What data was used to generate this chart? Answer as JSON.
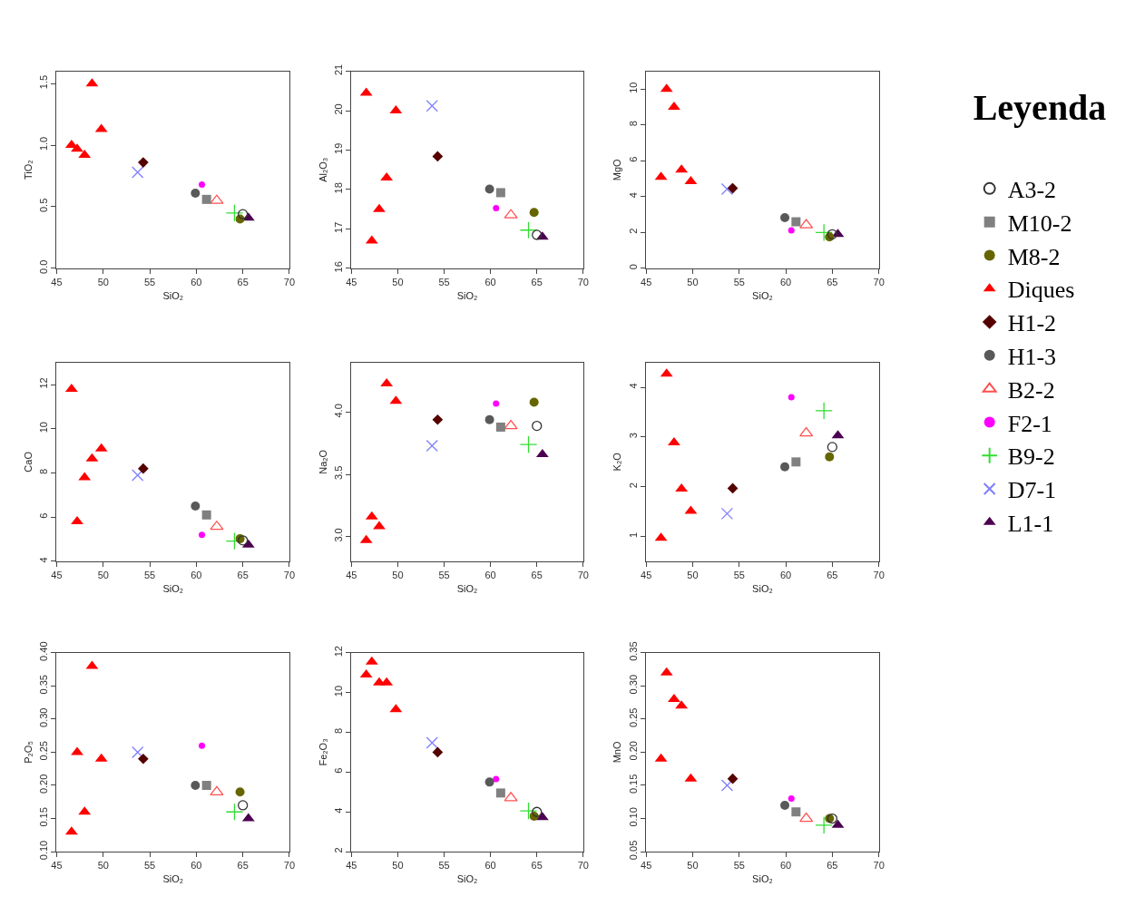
{
  "chart_data": [
    {
      "type": "scatter",
      "xlabel": "SiO₂",
      "ylabel": "TiO₂",
      "xlim": [
        45,
        70
      ],
      "xticks": [
        45,
        50,
        55,
        60,
        65,
        70
      ],
      "ylim": [
        0,
        1.6
      ],
      "yticks": [
        {
          "value": 0,
          "label": "0.0"
        },
        {
          "value": 0.5,
          "label": "0.5"
        },
        {
          "value": 1,
          "label": "1.0"
        },
        {
          "value": 1.5,
          "label": "1.5"
        }
      ],
      "legend": "right",
      "legend_title": "Leyenda",
      "series": [
        {
          "name": "A3-2",
          "color": "#333333",
          "marker": "circle-open",
          "x": [
            65.0
          ],
          "values": [
            0.44
          ]
        },
        {
          "name": "M10-2",
          "color": "#808080",
          "marker": "square",
          "x": [
            61.1
          ],
          "values": [
            0.56
          ]
        },
        {
          "name": "M8-2",
          "color": "#666600",
          "marker": "circle",
          "x": [
            64.7
          ],
          "values": [
            0.4
          ]
        },
        {
          "name": "Diques",
          "color": "#ff0000",
          "marker": "triangle",
          "x": [
            46.6,
            47.2,
            48.0,
            48.8,
            49.8
          ],
          "values": [
            1.0,
            0.97,
            0.92,
            1.5,
            1.13
          ]
        },
        {
          "name": "H1-2",
          "color": "#550000",
          "marker": "diamond",
          "x": [
            54.3
          ],
          "values": [
            0.86
          ]
        },
        {
          "name": "H1-3",
          "color": "#595959",
          "marker": "circle",
          "x": [
            59.9
          ],
          "values": [
            0.61
          ]
        },
        {
          "name": "B2-2",
          "color": "#ff5050",
          "marker": "triangle-open",
          "x": [
            62.2
          ],
          "values": [
            0.55
          ]
        },
        {
          "name": "F2-1",
          "color": "#ff00ff",
          "marker": "dot",
          "x": [
            60.6
          ],
          "values": [
            0.68
          ]
        },
        {
          "name": "B9-2",
          "color": "#33dd33",
          "marker": "cross",
          "x": [
            64.1
          ],
          "values": [
            0.45
          ]
        },
        {
          "name": "D7-1",
          "color": "#7f7fff",
          "marker": "x",
          "x": [
            53.7
          ],
          "values": [
            0.78
          ]
        },
        {
          "name": "L1-1",
          "color": "#4b0050",
          "marker": "triangle",
          "x": [
            65.6
          ],
          "values": [
            0.41
          ]
        }
      ]
    },
    {
      "type": "scatter",
      "xlabel": "SiO₂",
      "ylabel": "Al₂O₃",
      "xlim": [
        45,
        70
      ],
      "xticks": [
        45,
        50,
        55,
        60,
        65,
        70
      ],
      "ylim": [
        16,
        21
      ],
      "yticks": [
        16,
        17,
        18,
        19,
        20,
        21
      ],
      "series": [
        {
          "color": "#333333",
          "marker": "circle-open",
          "x": [
            65.0
          ],
          "values": [
            16.85
          ]
        },
        {
          "color": "#808080",
          "marker": "square",
          "x": [
            61.1
          ],
          "values": [
            17.92
          ]
        },
        {
          "color": "#666600",
          "marker": "circle",
          "x": [
            64.7
          ],
          "values": [
            17.42
          ]
        },
        {
          "color": "#ff0000",
          "marker": "triangle",
          "x": [
            46.6,
            47.2,
            48.0,
            48.8,
            49.8
          ],
          "values": [
            20.45,
            16.7,
            17.5,
            18.3,
            20.0
          ]
        },
        {
          "color": "#550000",
          "marker": "diamond",
          "x": [
            54.3
          ],
          "values": [
            18.84
          ]
        },
        {
          "color": "#595959",
          "marker": "circle",
          "x": [
            59.9
          ],
          "values": [
            18.01
          ]
        },
        {
          "color": "#ff5050",
          "marker": "triangle-open",
          "x": [
            62.2
          ],
          "values": [
            17.35
          ]
        },
        {
          "color": "#ff00ff",
          "marker": "dot",
          "x": [
            60.6
          ],
          "values": [
            17.53
          ]
        },
        {
          "color": "#33dd33",
          "marker": "cross",
          "x": [
            64.1
          ],
          "values": [
            16.97
          ]
        },
        {
          "color": "#7f7fff",
          "marker": "x",
          "x": [
            53.7
          ],
          "values": [
            20.12
          ]
        },
        {
          "color": "#4b0050",
          "marker": "triangle",
          "x": [
            65.6
          ],
          "values": [
            16.8
          ]
        }
      ]
    },
    {
      "type": "scatter",
      "xlabel": "SiO₂",
      "ylabel": "MgO",
      "xlim": [
        45,
        70
      ],
      "xticks": [
        45,
        50,
        55,
        60,
        65,
        70
      ],
      "ylim": [
        0,
        11
      ],
      "yticks": [
        0,
        2,
        4,
        6,
        8,
        10
      ],
      "series": [
        {
          "color": "#333333",
          "marker": "circle-open",
          "x": [
            65.0
          ],
          "values": [
            1.9
          ]
        },
        {
          "color": "#808080",
          "marker": "square",
          "x": [
            61.1
          ],
          "values": [
            2.6
          ]
        },
        {
          "color": "#666600",
          "marker": "circle",
          "x": [
            64.7
          ],
          "values": [
            1.75
          ]
        },
        {
          "color": "#ff0000",
          "marker": "triangle",
          "x": [
            46.6,
            47.2,
            48.0,
            48.8,
            49.8
          ],
          "values": [
            5.1,
            10.0,
            9.0,
            5.5,
            4.85
          ]
        },
        {
          "color": "#550000",
          "marker": "diamond",
          "x": [
            54.3
          ],
          "values": [
            4.47
          ]
        },
        {
          "color": "#595959",
          "marker": "circle",
          "x": [
            59.9
          ],
          "values": [
            2.83
          ]
        },
        {
          "color": "#ff5050",
          "marker": "triangle-open",
          "x": [
            62.2
          ],
          "values": [
            2.42
          ]
        },
        {
          "color": "#ff00ff",
          "marker": "dot",
          "x": [
            60.6
          ],
          "values": [
            2.12
          ]
        },
        {
          "color": "#33dd33",
          "marker": "cross",
          "x": [
            64.1
          ],
          "values": [
            2.0
          ]
        },
        {
          "color": "#7f7fff",
          "marker": "x",
          "x": [
            53.7
          ],
          "values": [
            4.42
          ]
        },
        {
          "color": "#4b0050",
          "marker": "triangle",
          "x": [
            65.6
          ],
          "values": [
            1.9
          ]
        }
      ]
    },
    {
      "type": "scatter",
      "xlabel": "SiO₂",
      "ylabel": "CaO",
      "xlim": [
        45,
        70
      ],
      "xticks": [
        45,
        50,
        55,
        60,
        65,
        70
      ],
      "ylim": [
        4,
        13
      ],
      "yticks": [
        4,
        6,
        8,
        10,
        12
      ],
      "series": [
        {
          "color": "#333333",
          "marker": "circle-open",
          "x": [
            65.0
          ],
          "values": [
            4.95
          ]
        },
        {
          "color": "#808080",
          "marker": "square",
          "x": [
            61.1
          ],
          "values": [
            6.1
          ]
        },
        {
          "color": "#666600",
          "marker": "circle",
          "x": [
            64.7
          ],
          "values": [
            5.02
          ]
        },
        {
          "color": "#ff0000",
          "marker": "triangle",
          "x": [
            46.6,
            47.2,
            48.0,
            48.8,
            49.8
          ],
          "values": [
            11.8,
            5.8,
            7.8,
            8.65,
            9.1
          ]
        },
        {
          "color": "#550000",
          "marker": "diamond",
          "x": [
            54.3
          ],
          "values": [
            8.2
          ]
        },
        {
          "color": "#595959",
          "marker": "circle",
          "x": [
            59.9
          ],
          "values": [
            6.5
          ]
        },
        {
          "color": "#ff5050",
          "marker": "triangle-open",
          "x": [
            62.2
          ],
          "values": [
            5.57
          ]
        },
        {
          "color": "#ff00ff",
          "marker": "dot",
          "x": [
            60.6
          ],
          "values": [
            5.2
          ]
        },
        {
          "color": "#33dd33",
          "marker": "cross",
          "x": [
            64.1
          ],
          "values": [
            4.92
          ]
        },
        {
          "color": "#7f7fff",
          "marker": "x",
          "x": [
            53.7
          ],
          "values": [
            7.9
          ]
        },
        {
          "color": "#4b0050",
          "marker": "triangle",
          "x": [
            65.6
          ],
          "values": [
            4.75
          ]
        }
      ]
    },
    {
      "type": "scatter",
      "xlabel": "SiO₂",
      "ylabel": "Na₂O",
      "xlim": [
        45,
        70
      ],
      "xticks": [
        45,
        50,
        55,
        60,
        65,
        70
      ],
      "ylim": [
        2.8,
        4.4
      ],
      "yticks": [
        {
          "value": 3,
          "label": "3.0"
        },
        {
          "value": 3.5,
          "label": "3.5"
        },
        {
          "value": 4,
          "label": "4.0"
        }
      ],
      "series": [
        {
          "color": "#333333",
          "marker": "circle-open",
          "x": [
            65.0
          ],
          "values": [
            3.89
          ]
        },
        {
          "color": "#808080",
          "marker": "square",
          "x": [
            61.1
          ],
          "values": [
            3.88
          ]
        },
        {
          "color": "#666600",
          "marker": "circle",
          "x": [
            64.7
          ],
          "values": [
            4.08
          ]
        },
        {
          "color": "#ff0000",
          "marker": "triangle",
          "x": [
            46.6,
            47.2,
            48.0,
            48.8,
            49.8
          ],
          "values": [
            2.97,
            3.16,
            3.08,
            4.23,
            4.09
          ]
        },
        {
          "color": "#550000",
          "marker": "diamond",
          "x": [
            54.3
          ],
          "values": [
            3.94
          ]
        },
        {
          "color": "#595959",
          "marker": "circle",
          "x": [
            59.9
          ],
          "values": [
            3.94
          ]
        },
        {
          "color": "#ff5050",
          "marker": "triangle-open",
          "x": [
            62.2
          ],
          "values": [
            3.89
          ]
        },
        {
          "color": "#ff00ff",
          "marker": "dot",
          "x": [
            60.6
          ],
          "values": [
            4.07
          ]
        },
        {
          "color": "#33dd33",
          "marker": "cross",
          "x": [
            64.1
          ],
          "values": [
            3.74
          ]
        },
        {
          "color": "#7f7fff",
          "marker": "x",
          "x": [
            53.7
          ],
          "values": [
            3.73
          ]
        },
        {
          "color": "#4b0050",
          "marker": "triangle",
          "x": [
            65.6
          ],
          "values": [
            3.66
          ]
        }
      ]
    },
    {
      "type": "scatter",
      "xlabel": "SiO₂",
      "ylabel": "K₂O",
      "xlim": [
        45,
        70
      ],
      "xticks": [
        45,
        50,
        55,
        60,
        65,
        70
      ],
      "ylim": [
        0.5,
        4.5
      ],
      "yticks": [
        1,
        2,
        3,
        4
      ],
      "series": [
        {
          "color": "#333333",
          "marker": "circle-open",
          "x": [
            65.0
          ],
          "values": [
            2.8
          ]
        },
        {
          "color": "#808080",
          "marker": "square",
          "x": [
            61.1
          ],
          "values": [
            2.5
          ]
        },
        {
          "color": "#666600",
          "marker": "circle",
          "x": [
            64.7
          ],
          "values": [
            2.6
          ]
        },
        {
          "color": "#ff0000",
          "marker": "triangle",
          "x": [
            46.6,
            47.2,
            48.0,
            48.8,
            49.8
          ],
          "values": [
            0.97,
            4.27,
            2.89,
            1.96,
            1.51
          ]
        },
        {
          "color": "#550000",
          "marker": "diamond",
          "x": [
            54.3
          ],
          "values": [
            1.97
          ]
        },
        {
          "color": "#595959",
          "marker": "circle",
          "x": [
            59.9
          ],
          "values": [
            2.4
          ]
        },
        {
          "color": "#ff5050",
          "marker": "triangle-open",
          "x": [
            62.2
          ],
          "values": [
            3.08
          ]
        },
        {
          "color": "#ff00ff",
          "marker": "dot",
          "x": [
            60.6
          ],
          "values": [
            3.8
          ]
        },
        {
          "color": "#33dd33",
          "marker": "cross",
          "x": [
            64.1
          ],
          "values": [
            3.53
          ]
        },
        {
          "color": "#7f7fff",
          "marker": "x",
          "x": [
            53.7
          ],
          "values": [
            1.46
          ]
        },
        {
          "color": "#4b0050",
          "marker": "triangle",
          "x": [
            65.6
          ],
          "values": [
            3.03
          ]
        }
      ]
    },
    {
      "type": "scatter",
      "xlabel": "SiO₂",
      "ylabel": "P₂O₅",
      "xlim": [
        45,
        70
      ],
      "xticks": [
        45,
        50,
        55,
        60,
        65,
        70
      ],
      "ylim": [
        0.1,
        0.4
      ],
      "yticks": [
        {
          "value": 0.1,
          "label": "0.10"
        },
        {
          "value": 0.15,
          "label": "0.15"
        },
        {
          "value": 0.2,
          "label": "0.20"
        },
        {
          "value": 0.25,
          "label": "0.25"
        },
        {
          "value": 0.3,
          "label": "0.30"
        },
        {
          "value": 0.35,
          "label": "0.35"
        },
        {
          "value": 0.4,
          "label": "0.40"
        }
      ],
      "series": [
        {
          "color": "#333333",
          "marker": "circle-open",
          "x": [
            65.0
          ],
          "values": [
            0.17
          ]
        },
        {
          "color": "#808080",
          "marker": "square",
          "x": [
            61.1
          ],
          "values": [
            0.2
          ]
        },
        {
          "color": "#666600",
          "marker": "circle",
          "x": [
            64.7
          ],
          "values": [
            0.19
          ]
        },
        {
          "color": "#ff0000",
          "marker": "triangle",
          "x": [
            46.6,
            47.2,
            48.0,
            48.8,
            49.8
          ],
          "values": [
            0.13,
            0.25,
            0.16,
            0.38,
            0.24
          ]
        },
        {
          "color": "#550000",
          "marker": "diamond",
          "x": [
            54.3
          ],
          "values": [
            0.24
          ]
        },
        {
          "color": "#595959",
          "marker": "circle",
          "x": [
            59.9
          ],
          "values": [
            0.2
          ]
        },
        {
          "color": "#ff5050",
          "marker": "triangle-open",
          "x": [
            62.2
          ],
          "values": [
            0.19
          ]
        },
        {
          "color": "#ff00ff",
          "marker": "dot",
          "x": [
            60.6
          ],
          "values": [
            0.26
          ]
        },
        {
          "color": "#33dd33",
          "marker": "cross",
          "x": [
            64.1
          ],
          "values": [
            0.16
          ]
        },
        {
          "color": "#7f7fff",
          "marker": "x",
          "x": [
            53.7
          ],
          "values": [
            0.25
          ]
        },
        {
          "color": "#4b0050",
          "marker": "triangle",
          "x": [
            65.6
          ],
          "values": [
            0.15
          ]
        }
      ]
    },
    {
      "type": "scatter",
      "xlabel": "SiO₂",
      "ylabel": "Fe₂O₃",
      "xlim": [
        45,
        70
      ],
      "xticks": [
        45,
        50,
        55,
        60,
        65,
        70
      ],
      "ylim": [
        2,
        12
      ],
      "yticks": [
        2,
        4,
        6,
        8,
        10,
        12
      ],
      "series": [
        {
          "color": "#333333",
          "marker": "circle-open",
          "x": [
            65.0
          ],
          "values": [
            4.0
          ]
        },
        {
          "color": "#808080",
          "marker": "square",
          "x": [
            61.1
          ],
          "values": [
            4.95
          ]
        },
        {
          "color": "#666600",
          "marker": "circle",
          "x": [
            64.7
          ],
          "values": [
            3.78
          ]
        },
        {
          "color": "#ff0000",
          "marker": "triangle",
          "x": [
            46.6,
            47.2,
            48.0,
            48.8,
            49.8
          ],
          "values": [
            10.9,
            11.55,
            10.5,
            10.5,
            9.15
          ]
        },
        {
          "color": "#550000",
          "marker": "diamond",
          "x": [
            54.3
          ],
          "values": [
            7.0
          ]
        },
        {
          "color": "#595959",
          "marker": "circle",
          "x": [
            59.9
          ],
          "values": [
            5.5
          ]
        },
        {
          "color": "#ff5050",
          "marker": "triangle-open",
          "x": [
            62.2
          ],
          "values": [
            4.7
          ]
        },
        {
          "color": "#ff00ff",
          "marker": "dot",
          "x": [
            60.6
          ],
          "values": [
            5.65
          ]
        },
        {
          "color": "#33dd33",
          "marker": "cross",
          "x": [
            64.1
          ],
          "values": [
            4.05
          ]
        },
        {
          "color": "#7f7fff",
          "marker": "x",
          "x": [
            53.7
          ],
          "values": [
            7.48
          ]
        },
        {
          "color": "#4b0050",
          "marker": "triangle",
          "x": [
            65.6
          ],
          "values": [
            3.73
          ]
        }
      ]
    },
    {
      "type": "scatter",
      "xlabel": "SiO₂",
      "ylabel": "MnO",
      "xlim": [
        45,
        70
      ],
      "xticks": [
        45,
        50,
        55,
        60,
        65,
        70
      ],
      "ylim": [
        0.05,
        0.35
      ],
      "yticks": [
        {
          "value": 0.05,
          "label": "0.05"
        },
        {
          "value": 0.1,
          "label": "0.10"
        },
        {
          "value": 0.15,
          "label": "0.15"
        },
        {
          "value": 0.2,
          "label": "0.20"
        },
        {
          "value": 0.25,
          "label": "0.25"
        },
        {
          "value": 0.3,
          "label": "0.30"
        },
        {
          "value": 0.35,
          "label": "0.35"
        }
      ],
      "series": [
        {
          "color": "#333333",
          "marker": "circle-open",
          "x": [
            65.0
          ],
          "values": [
            0.1
          ]
        },
        {
          "color": "#808080",
          "marker": "square",
          "x": [
            61.1
          ],
          "values": [
            0.11
          ]
        },
        {
          "color": "#666600",
          "marker": "circle",
          "x": [
            64.7
          ],
          "values": [
            0.1
          ]
        },
        {
          "color": "#ff0000",
          "marker": "triangle",
          "x": [
            46.6,
            47.2,
            48.0,
            48.8,
            49.8
          ],
          "values": [
            0.19,
            0.32,
            0.28,
            0.27,
            0.16
          ]
        },
        {
          "color": "#550000",
          "marker": "diamond",
          "x": [
            54.3
          ],
          "values": [
            0.16
          ]
        },
        {
          "color": "#595959",
          "marker": "circle",
          "x": [
            59.9
          ],
          "values": [
            0.12
          ]
        },
        {
          "color": "#ff5050",
          "marker": "triangle-open",
          "x": [
            62.2
          ],
          "values": [
            0.1
          ]
        },
        {
          "color": "#ff00ff",
          "marker": "dot",
          "x": [
            60.6
          ],
          "values": [
            0.13
          ]
        },
        {
          "color": "#33dd33",
          "marker": "cross",
          "x": [
            64.1
          ],
          "values": [
            0.09
          ]
        },
        {
          "color": "#7f7fff",
          "marker": "x",
          "x": [
            53.7
          ],
          "values": [
            0.15
          ]
        },
        {
          "color": "#4b0050",
          "marker": "triangle",
          "x": [
            65.6
          ],
          "values": [
            0.09
          ]
        }
      ]
    }
  ]
}
